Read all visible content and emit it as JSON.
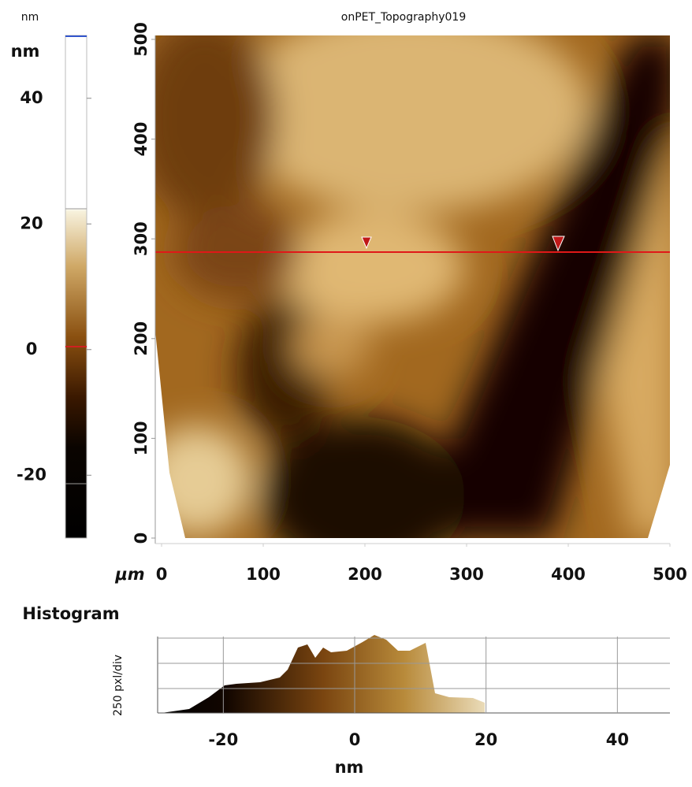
{
  "title": "onPET_Topography019",
  "colorbar": {
    "unit_top": "nm",
    "unit": "nm",
    "ticks": [
      40,
      20,
      0,
      -20
    ],
    "lim": [
      -30,
      50
    ]
  },
  "image": {
    "x_unit": "μm",
    "xlim": [
      0,
      500
    ],
    "ylim": [
      0,
      500
    ],
    "xticks": [
      0,
      100,
      200,
      300,
      400,
      500
    ],
    "yticks": [
      0,
      100,
      200,
      300,
      400,
      500
    ]
  },
  "histogram": {
    "title": "Histogram",
    "ylabel": "250 pxl/div",
    "xlabel": "nm",
    "xlim": [
      -30,
      48
    ],
    "xticks": [
      -20,
      0,
      20,
      40
    ]
  }
}
